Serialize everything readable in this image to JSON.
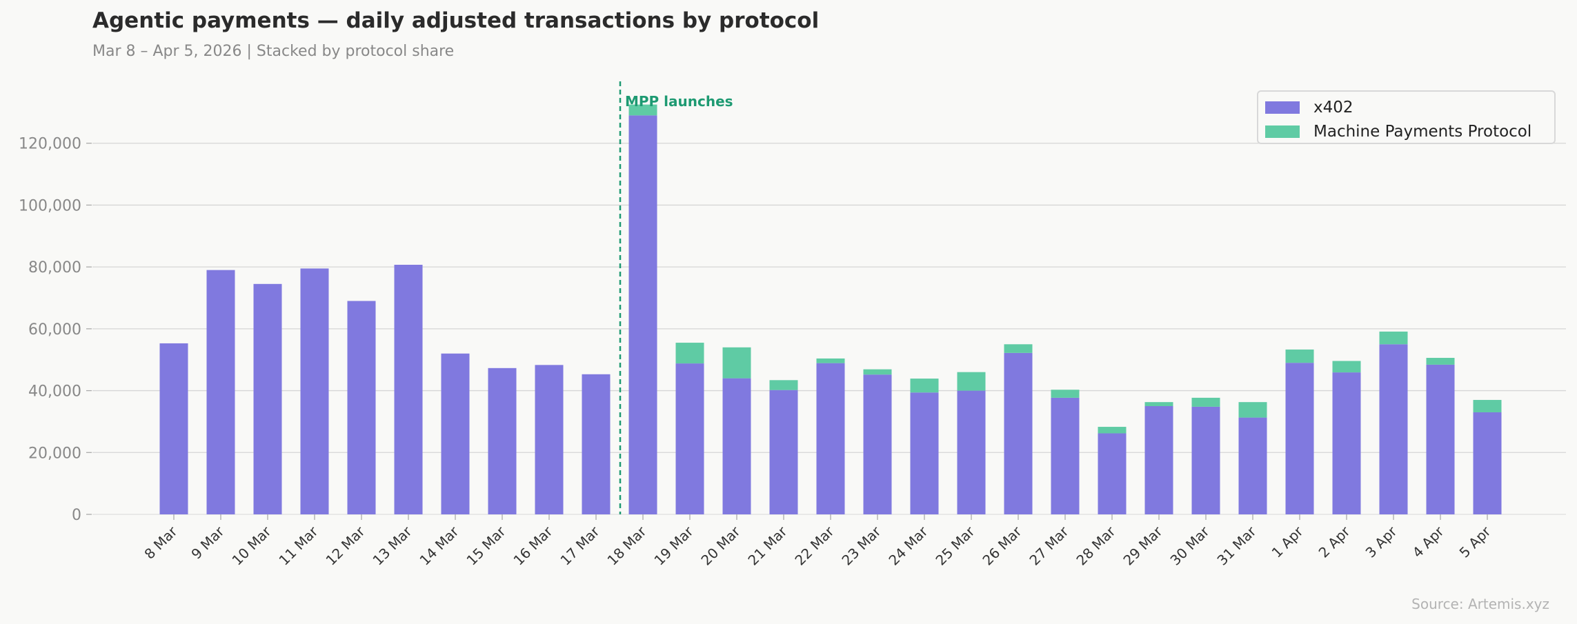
{
  "title": "Agentic payments — daily adjusted transactions by protocol",
  "subtitle": "Mar 8 – Apr 5, 2026  |  Stacked by protocol share",
  "source": "Source: Artemis.xyz",
  "colors": {
    "x402": "#8079df",
    "mpp": "#5fcba4",
    "annotation": "#1e9a72",
    "grid": "#d6d6d6",
    "tick_label": "#888888",
    "x_tick_label": "#333333"
  },
  "legend": {
    "placement": "top-right",
    "items": [
      {
        "label": "x402",
        "color": "#8079df"
      },
      {
        "label": "Machine Payments Protocol",
        "color": "#5fcba4"
      }
    ]
  },
  "annotation": {
    "label": "MPP launches",
    "at_category": "18 Mar",
    "style": "dashed-vertical-line"
  },
  "chart_data": {
    "type": "bar",
    "stacked": true,
    "title": "Agentic payments — daily adjusted transactions by protocol",
    "subtitle": "Mar 8 – Apr 5, 2026  |  Stacked by protocol share",
    "xlabel": "",
    "ylabel": "",
    "ylim": [
      0,
      140000
    ],
    "yticks": [
      0,
      20000,
      40000,
      60000,
      80000,
      100000,
      120000
    ],
    "ytick_labels": [
      "0",
      "20,000",
      "40,000",
      "60,000",
      "80,000",
      "100,000",
      "120,000"
    ],
    "grid": true,
    "legend_position": "top-right",
    "categories": [
      "8 Mar",
      "9 Mar",
      "10 Mar",
      "11 Mar",
      "12 Mar",
      "13 Mar",
      "14 Mar",
      "15 Mar",
      "16 Mar",
      "17 Mar",
      "18 Mar",
      "19 Mar",
      "20 Mar",
      "21 Mar",
      "22 Mar",
      "23 Mar",
      "24 Mar",
      "25 Mar",
      "26 Mar",
      "27 Mar",
      "28 Mar",
      "29 Mar",
      "30 Mar",
      "31 Mar",
      "1 Apr",
      "2 Apr",
      "3 Apr",
      "4 Apr",
      "5 Apr"
    ],
    "series": [
      {
        "name": "x402",
        "color": "#8079df",
        "values": [
          55300,
          79000,
          74500,
          79500,
          69000,
          80700,
          52000,
          47300,
          48300,
          45300,
          129000,
          48800,
          44000,
          40200,
          48900,
          45200,
          39400,
          40000,
          52200,
          37700,
          26200,
          35000,
          34800,
          31300,
          49000,
          45900,
          55000,
          48400,
          33000
        ]
      },
      {
        "name": "Machine Payments Protocol",
        "color": "#5fcba4",
        "values": [
          0,
          0,
          0,
          0,
          0,
          0,
          0,
          0,
          0,
          0,
          3500,
          6700,
          10000,
          3200,
          1500,
          1700,
          4500,
          6000,
          2800,
          2600,
          2100,
          1300,
          2900,
          5000,
          4300,
          3700,
          4100,
          2200,
          4000
        ]
      }
    ]
  }
}
